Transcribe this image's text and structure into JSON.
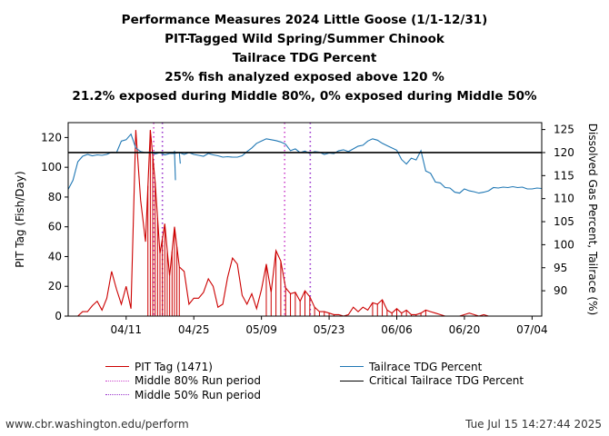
{
  "title": {
    "line1": "Performance Measures 2024 Little Goose (1/1-12/31)",
    "line2": "PIT-Tagged Wild Spring/Summer Chinook",
    "line3": "Tailrace TDG Percent",
    "line4": "25% fish analyzed exposed above 120 %",
    "line5": "21.2% exposed during Middle 80%, 0% exposed during Middle 50%"
  },
  "footer": {
    "left": "www.cbr.washington.edu/perform",
    "right": "Tue Jul 15 14:27:44 2025"
  },
  "colors": {
    "pit": "#cc0000",
    "tdg": "#1f77b4",
    "critical": "#000000",
    "mid80": "#cc44cc",
    "mid50": "#9933cc"
  },
  "legend": {
    "pit": "PIT Tag (1471)",
    "mid80": "Middle 80% Run period",
    "mid50": "Middle 50% Run period",
    "tdg": "Tailrace TDG Percent",
    "critical": "Critical Tailrace TDG Percent"
  },
  "chart_data": {
    "type": "line",
    "x_unit": "day of year 2024",
    "xlim": [
      90,
      188
    ],
    "xticks": [
      {
        "day": 102,
        "label": "04/11"
      },
      {
        "day": 116,
        "label": "04/25"
      },
      {
        "day": 130,
        "label": "05/09"
      },
      {
        "day": 144,
        "label": "05/23"
      },
      {
        "day": 158,
        "label": "06/06"
      },
      {
        "day": 172,
        "label": "06/20"
      },
      {
        "day": 186,
        "label": "07/04"
      }
    ],
    "left_axis": {
      "label": "PIT Tag (Fish/Day)",
      "ylim": [
        0,
        130
      ],
      "ticks": [
        0,
        20,
        40,
        60,
        80,
        100,
        120
      ]
    },
    "right_axis": {
      "label": "Dissolved Gas Percent, Tailrace (%)",
      "ylim": [
        84.5,
        126.5
      ],
      "ticks": [
        90,
        95,
        100,
        105,
        110,
        115,
        120,
        125
      ]
    },
    "critical_tdg": 120,
    "middle_80": [
      107.7,
      134.8
    ],
    "middle_50": [
      109.5,
      140.1
    ],
    "pit_series": {
      "name": "PIT Tag (1471)",
      "x": [
        90,
        92,
        93,
        94,
        95,
        96,
        97,
        98,
        99,
        100,
        101,
        102,
        103,
        104,
        105,
        106,
        107,
        108,
        109,
        110,
        111,
        112,
        113,
        114,
        115,
        116,
        117,
        118,
        119,
        120,
        121,
        122,
        123,
        124,
        125,
        126,
        127,
        128,
        129,
        130,
        131,
        132,
        133,
        134,
        135,
        136,
        137,
        138,
        139,
        140,
        141,
        142,
        143,
        144,
        145,
        146,
        147,
        148,
        149,
        150,
        151,
        152,
        153,
        154,
        155,
        156,
        157,
        158,
        159,
        160,
        161,
        162,
        163,
        164,
        165,
        166,
        167,
        168,
        169,
        170,
        171,
        172,
        173,
        174,
        175,
        176,
        177,
        178,
        179,
        180,
        181,
        182,
        183,
        184,
        185,
        186,
        187,
        188
      ],
      "values": [
        0,
        0,
        3,
        3,
        7,
        10,
        4,
        12,
        30,
        18,
        8,
        20,
        5,
        125,
        78,
        50,
        125,
        90,
        42,
        62,
        27,
        60,
        33,
        30,
        8,
        12,
        12,
        16,
        25,
        20,
        6,
        8,
        26,
        39,
        35,
        14,
        8,
        15,
        5,
        18,
        35,
        16,
        44,
        37,
        19,
        15,
        16,
        10,
        17,
        13,
        6,
        3,
        3,
        2,
        1,
        1,
        0,
        1,
        6,
        3,
        6,
        4,
        9,
        8,
        11,
        4,
        2,
        5,
        2,
        4,
        1,
        1,
        2,
        4,
        3,
        2,
        1,
        0,
        0,
        0,
        0,
        1,
        2,
        1,
        0,
        1,
        0,
        0,
        0,
        0,
        0,
        0,
        0,
        0,
        0,
        0,
        0,
        0
      ]
    },
    "tdg_series": {
      "name": "Tailrace TDG Percent",
      "x": [
        90,
        91,
        92,
        93,
        94,
        95,
        96,
        97,
        98,
        99,
        100,
        101,
        102,
        103,
        104,
        105,
        106,
        107,
        108,
        109,
        110,
        111,
        112,
        113,
        114,
        115,
        116,
        117,
        118,
        119,
        120,
        121,
        122,
        123,
        124,
        125,
        126,
        127,
        128,
        129,
        130,
        131,
        132,
        133,
        134,
        135,
        136,
        137,
        138,
        139,
        140,
        141,
        142,
        143,
        144,
        145,
        146,
        147,
        148,
        149,
        150,
        151,
        152,
        153,
        154,
        155,
        156,
        157,
        158,
        159,
        160,
        161,
        162,
        163,
        164,
        165,
        166,
        167,
        168,
        169,
        170,
        171,
        172,
        173,
        174,
        175,
        176,
        177,
        178,
        179,
        180,
        181,
        182,
        183,
        184,
        185,
        186,
        187,
        188
      ],
      "values": [
        112,
        114,
        118,
        119.2,
        119.6,
        119.3,
        119.5,
        119.4,
        119.6,
        120.1,
        120,
        122.5,
        122.8,
        124,
        121,
        120.2,
        120,
        120.1,
        119.7,
        120,
        119.5,
        119.8,
        119.8,
        120,
        119.6,
        120,
        119.6,
        119.4,
        119.2,
        119.8,
        119.5,
        119.3,
        119,
        119.1,
        119,
        119,
        119.3,
        120.2,
        121,
        122,
        122.5,
        123,
        122.8,
        122.6,
        122.3,
        121.8,
        120.4,
        120.8,
        120,
        120.3,
        119.8,
        120.2,
        120.1,
        119.6,
        119.9,
        119.8,
        120.4,
        120.6,
        120.2,
        120.8,
        121.4,
        121.6,
        122.5,
        123,
        122.7,
        122,
        121.5,
        121,
        120.5,
        118.5,
        117.5,
        118.8,
        118.4,
        120.4,
        116,
        115.5,
        113.6,
        113.4,
        112.4,
        112.3,
        111.4,
        111.2,
        112.1,
        111.7,
        111.5,
        111.2,
        111.4,
        111.7,
        112.4,
        112.3,
        112.5,
        112.4,
        112.6,
        112.4,
        112.5,
        112.1,
        112.1,
        112.3,
        112.2
      ]
    },
    "tdg_drops": [
      {
        "from": [
          112,
          120.4
        ],
        "to": [
          112.2,
          114
        ]
      },
      {
        "from": [
          113,
          120
        ],
        "to": [
          113.2,
          117.6
        ]
      }
    ],
    "pit_stems": [
      106.5,
      107,
      107.5,
      108,
      108.5,
      109,
      109.5,
      110,
      110.5,
      111,
      111.5,
      112,
      112.5,
      113,
      131,
      132,
      133,
      134,
      135,
      136,
      137,
      138,
      139,
      140,
      141,
      142,
      143,
      144,
      145,
      153,
      154,
      155,
      156,
      157,
      158,
      159,
      160,
      161,
      162,
      163,
      164
    ]
  }
}
